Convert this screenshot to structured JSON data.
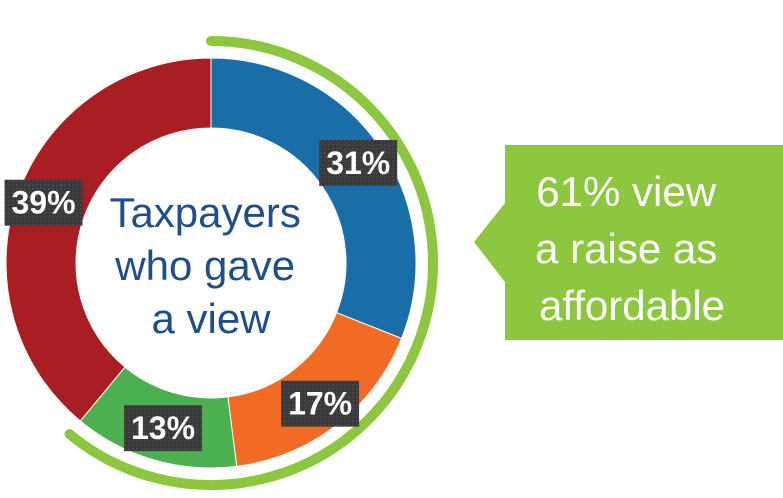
{
  "chart_data": {
    "type": "pie",
    "variant": "donut",
    "categories": [
      "",
      "",
      "",
      ""
    ],
    "values": [
      31,
      17,
      13,
      39
    ],
    "labels": [
      "31%",
      "17%",
      "13%",
      "39%"
    ],
    "colors": [
      "#1a6ea8",
      "#f26b24",
      "#4cb050",
      "#a81e22"
    ],
    "start": "top",
    "direction": "clockwise",
    "center_text": [
      "Taxpayers",
      "who gave",
      "a view"
    ],
    "highlight_arc": {
      "covers_values": [
        31,
        17,
        13
      ],
      "color": "#8dc63f"
    },
    "callout": {
      "lines": [
        "61% view",
        "a raise as",
        "affordable"
      ],
      "color": "#8dc63f"
    },
    "legend": "none"
  }
}
